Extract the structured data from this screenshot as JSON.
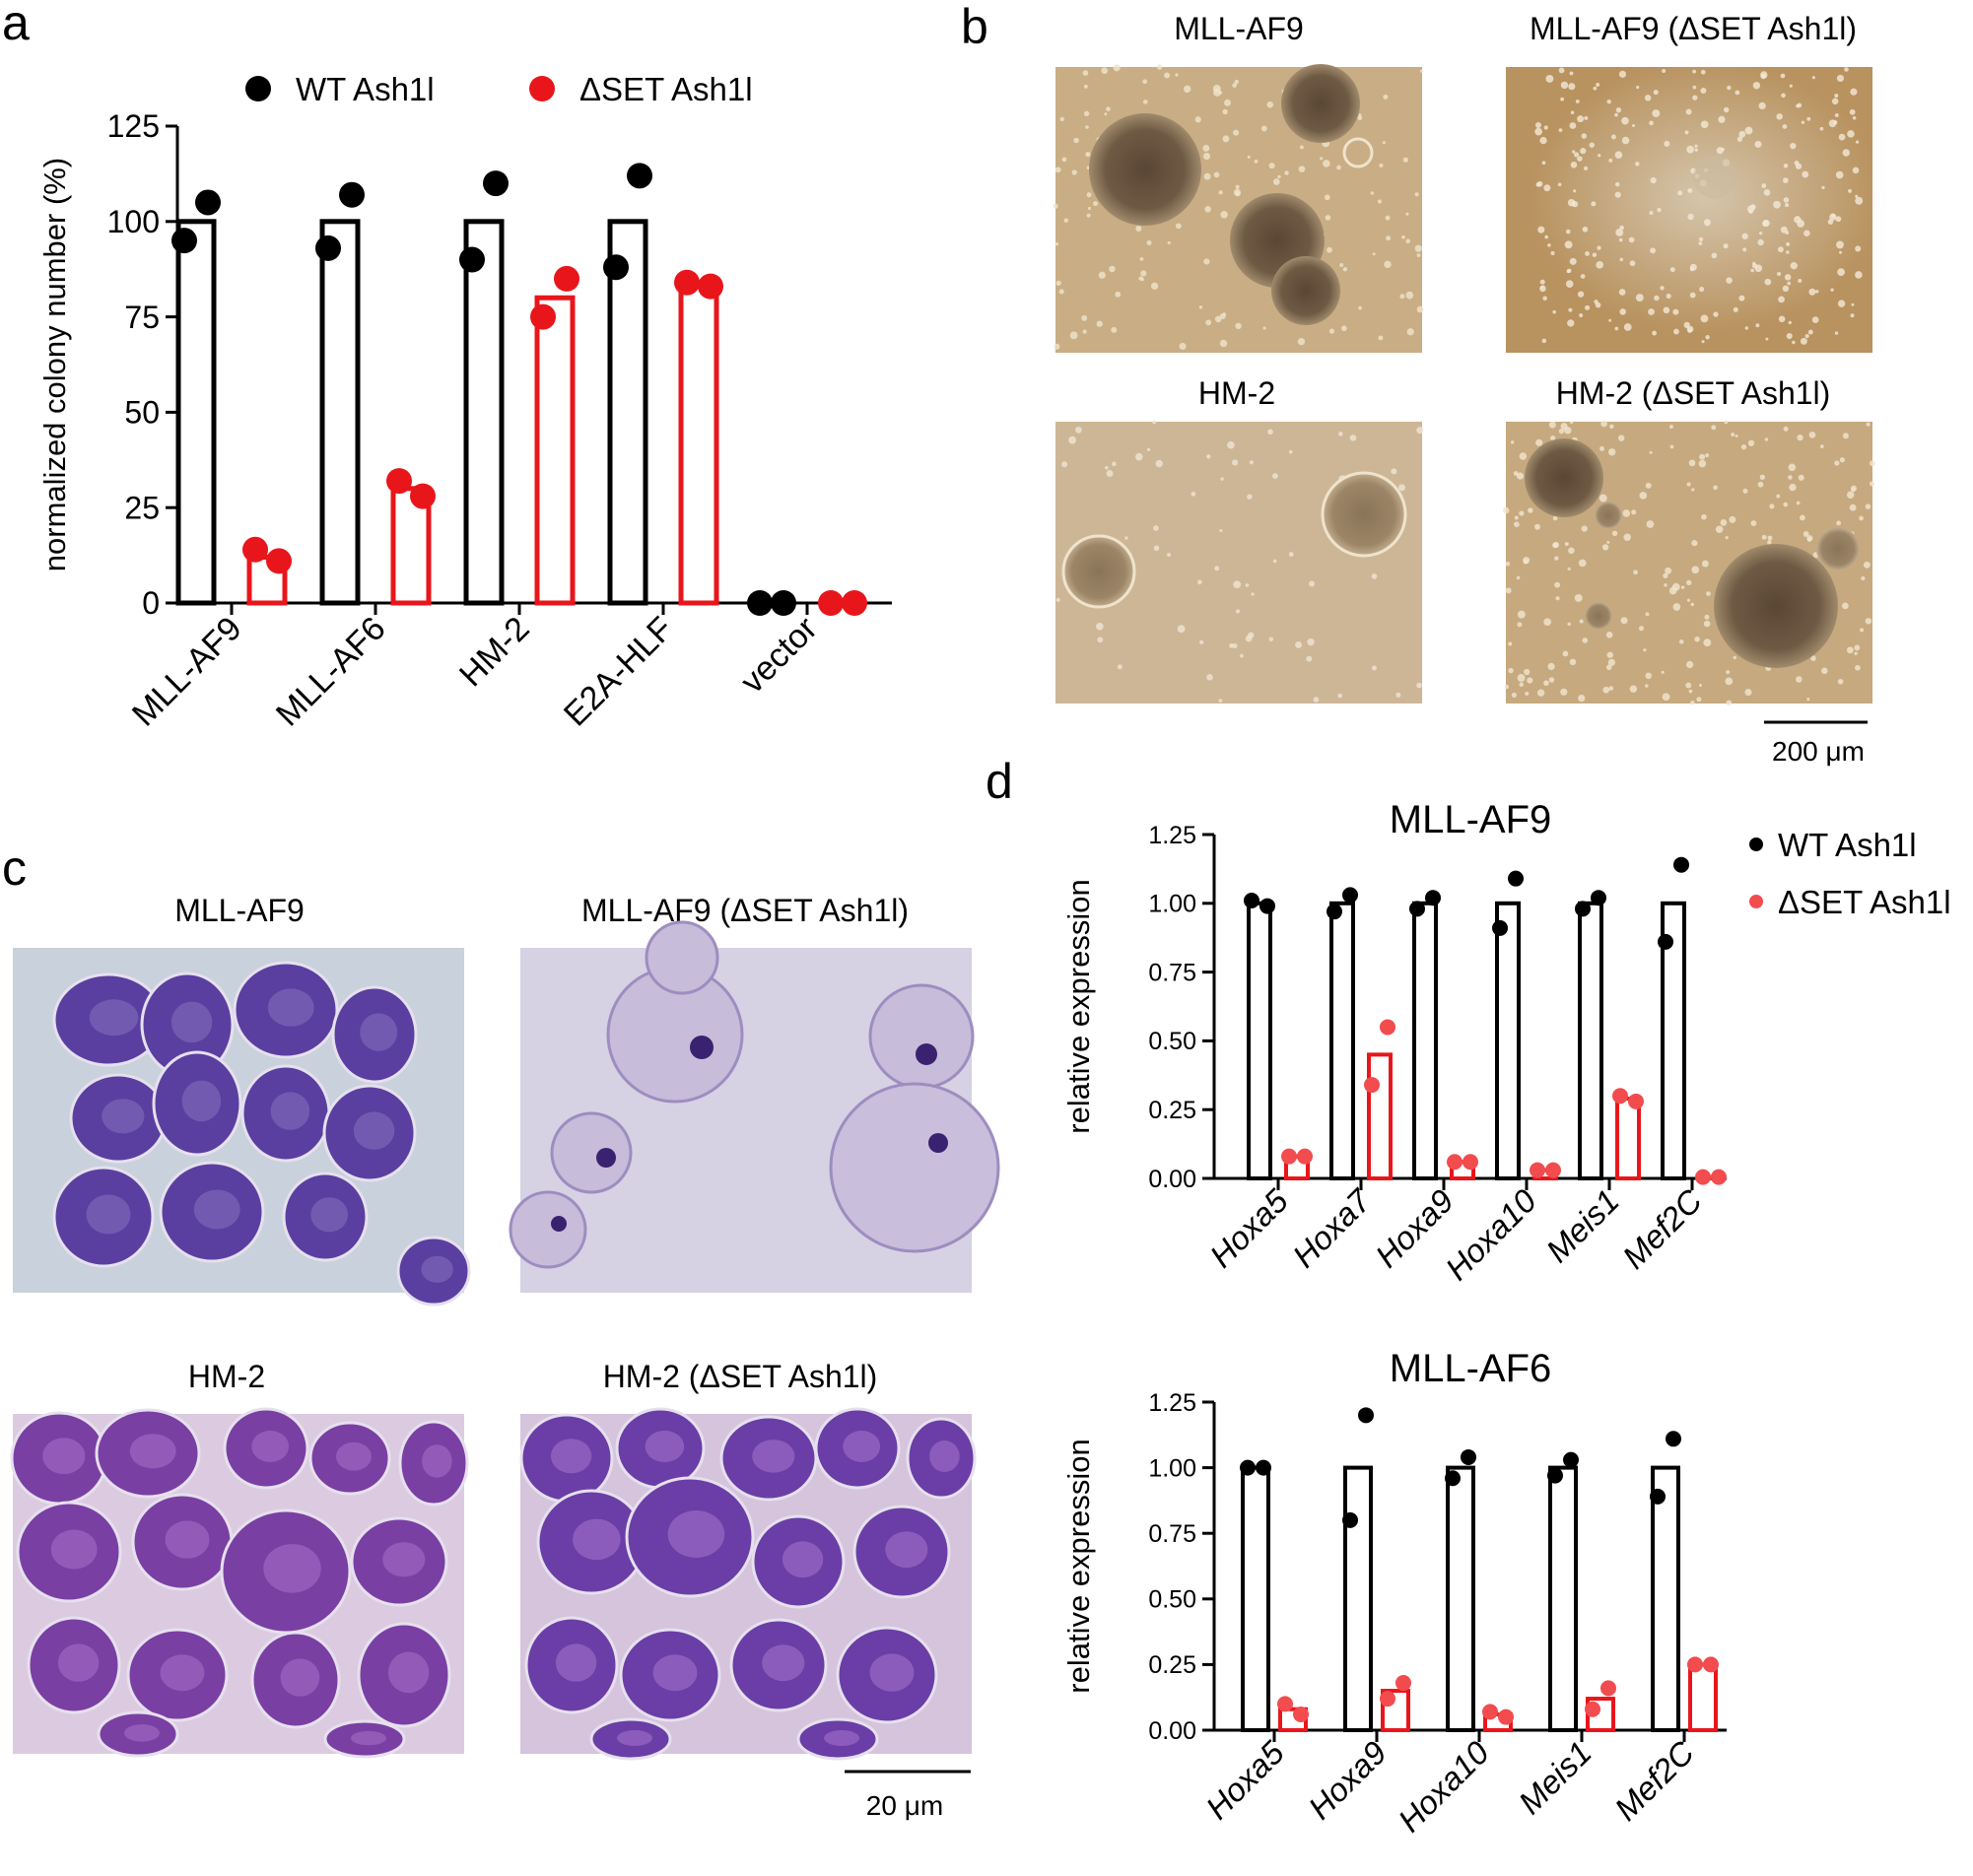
{
  "panels": {
    "a": "a",
    "b": "b",
    "c": "c",
    "d": "d"
  },
  "colors": {
    "wt": "#000000",
    "dset": "#e8161b",
    "dset_light": "#f24c4f"
  },
  "chart_data": [
    {
      "id": "a",
      "type": "bar",
      "ylabel": "normalized colony number (%)",
      "ylim": [
        0,
        125
      ],
      "yticks": [
        "0",
        "25",
        "50",
        "75",
        "100",
        "125"
      ],
      "categories": [
        "MLL-AF9",
        "MLL-AF6",
        "HM-2",
        "E2A-HLF",
        "vector"
      ],
      "legend": [
        "WT Ash1l",
        "ΔSET Ash1l"
      ],
      "series": [
        {
          "name": "WT Ash1l",
          "values": [
            100,
            100,
            100,
            100,
            0
          ],
          "points": [
            [
              105,
              95
            ],
            [
              107,
              93
            ],
            [
              110,
              90
            ],
            [
              112,
              88
            ],
            [
              0,
              0
            ]
          ]
        },
        {
          "name": "ΔSET Ash1l",
          "values": [
            12,
            30,
            80,
            83,
            0
          ],
          "points": [
            [
              11,
              14
            ],
            [
              28,
              32
            ],
            [
              85,
              75
            ],
            [
              83,
              84
            ],
            [
              0,
              0
            ]
          ]
        }
      ]
    },
    {
      "id": "d1",
      "type": "bar",
      "title": "MLL-AF9",
      "ylabel": "relative expression",
      "ylim": [
        0,
        1.25
      ],
      "yticks": [
        "0.00",
        "0.25",
        "0.50",
        "0.75",
        "1.00",
        "1.25"
      ],
      "categories": [
        "Hoxa5",
        "Hoxa7",
        "Hoxa9",
        "Hoxa10",
        "Meis1",
        "Mef2C"
      ],
      "legend": [
        "WT Ash1l",
        "ΔSET Ash1l"
      ],
      "series": [
        {
          "name": "WT Ash1l",
          "values": [
            1,
            1,
            1,
            1,
            1,
            1
          ],
          "points": [
            [
              0.99,
              1.01
            ],
            [
              1.03,
              0.97
            ],
            [
              1.02,
              0.98
            ],
            [
              1.09,
              0.91
            ],
            [
              1.02,
              0.98
            ],
            [
              1.14,
              0.86
            ]
          ]
        },
        {
          "name": "ΔSET Ash1l",
          "values": [
            0.08,
            0.45,
            0.06,
            0.03,
            0.29,
            0.005
          ],
          "points": [
            [
              0.08,
              0.08
            ],
            [
              0.55,
              0.34
            ],
            [
              0.06,
              0.06
            ],
            [
              0.03,
              0.03
            ],
            [
              0.28,
              0.3
            ],
            [
              0.005,
              0.005
            ]
          ]
        }
      ]
    },
    {
      "id": "d2",
      "type": "bar",
      "title": "MLL-AF6",
      "ylabel": "relative expression",
      "ylim": [
        0,
        1.25
      ],
      "yticks": [
        "0.00",
        "0.25",
        "0.50",
        "0.75",
        "1.00",
        "1.25"
      ],
      "categories": [
        "Hoxa5",
        "Hoxa9",
        "Hoxa10",
        "Meis1",
        "Mef2C"
      ],
      "series": [
        {
          "name": "WT Ash1l",
          "values": [
            1,
            1,
            1,
            1,
            1
          ],
          "points": [
            [
              1.0,
              1.0
            ],
            [
              1.2,
              0.8
            ],
            [
              1.04,
              0.96
            ],
            [
              1.03,
              0.97
            ],
            [
              1.11,
              0.89
            ]
          ]
        },
        {
          "name": "ΔSET Ash1l",
          "values": [
            0.08,
            0.15,
            0.06,
            0.12,
            0.25
          ],
          "points": [
            [
              0.06,
              0.1
            ],
            [
              0.18,
              0.12
            ],
            [
              0.05,
              0.07
            ],
            [
              0.16,
              0.08
            ],
            [
              0.25,
              0.25
            ]
          ]
        }
      ]
    }
  ],
  "micrographs_b": {
    "labels": [
      "MLL-AF9",
      "MLL-AF9 (ΔSET Ash1l)",
      "HM-2",
      "HM-2 (ΔSET Ash1l)"
    ],
    "scale": "200 μm"
  },
  "micrographs_c": {
    "labels": [
      "MLL-AF9",
      "MLL-AF9 (ΔSET Ash1l)",
      "HM-2",
      "HM-2 (ΔSET Ash1l)"
    ],
    "scale": "20 μm"
  }
}
